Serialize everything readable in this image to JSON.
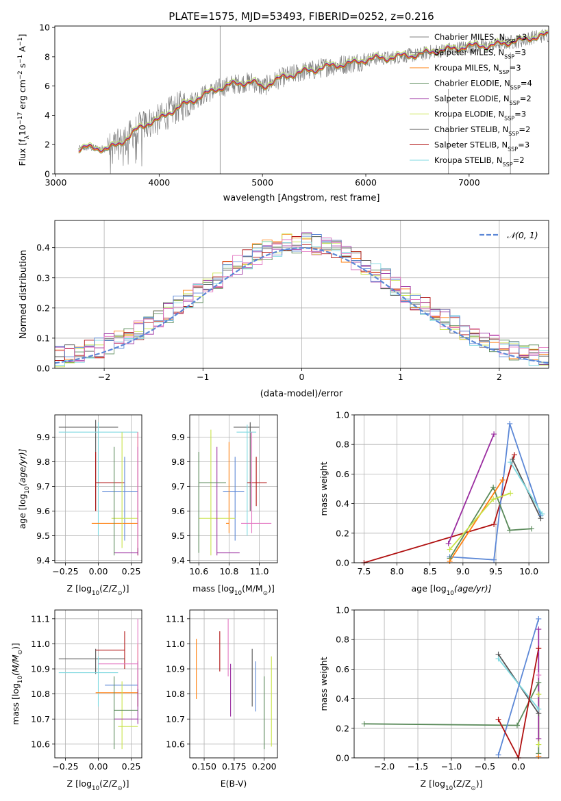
{
  "colors": {
    "chabrier_miles": "#808080",
    "salpeter_miles": "#808080",
    "kroupa_miles": "#ff7f0e",
    "chabrier_elodie": "#5a8a5a",
    "salpeter_elodie": "#9a2ca0",
    "kroupa_elodie": "#c8e34a",
    "chabrier_stelib": "#555555",
    "salpeter_stelib": "#b01010",
    "kroupa_stelib": "#7fd9e0",
    "blue": "#5b87d6",
    "pink": "#e377c2",
    "green": "#5a8a5a"
  },
  "chart_data": [
    {
      "id": "spectrum",
      "type": "line",
      "title": "PLATE=1575, MJD=53493, FIBERID=0252, z=0.216",
      "xlabel": "wavelength [Angstrom, rest frame]",
      "ylabel": "Flux [f",
      "ylabel_sub": "λ",
      "ylabel_rest": "10",
      "ylabel_exp": "−17",
      "ylabel_units": " erg cm",
      "ylabel_units_exp": "−2",
      "ylabel_s": " s",
      "ylabel_s_exp": "−1",
      "ylabel_A": " A",
      "ylabel_A_exp": "−1",
      "ylabel_close": "]",
      "xlim": [
        2990,
        7770
      ],
      "ylim": [
        0,
        10.1
      ],
      "xticks": [
        "3000",
        "4000",
        "5000",
        "6000",
        "7000"
      ],
      "xtick_values": [
        3000,
        4000,
        5000,
        6000,
        7000
      ],
      "yticks": [
        "0",
        "2",
        "4",
        "6",
        "8",
        "10"
      ],
      "ytick_values": [
        0,
        2,
        4,
        6,
        8,
        10
      ],
      "continuum": {
        "x": [
          3220,
          3300,
          3400,
          3500,
          3600,
          3700,
          3800,
          3900,
          4000,
          4100,
          4200,
          4300,
          4400,
          4500,
          4600,
          4700,
          4800,
          4900,
          5000,
          5100,
          5200,
          5300,
          5400,
          5500,
          5600,
          5700,
          5800,
          5900,
          6000,
          6100,
          6200,
          6300,
          6400,
          6500,
          6600,
          6700,
          6800,
          6900,
          7000,
          7100,
          7200,
          7300,
          7400,
          7500,
          7600,
          7770
        ],
        "y": [
          1.7,
          1.8,
          1.75,
          1.7,
          2.0,
          2.5,
          3.1,
          3.5,
          3.7,
          4.2,
          4.6,
          4.9,
          5.3,
          5.6,
          5.9,
          6.1,
          6.2,
          6.3,
          5.9,
          6.3,
          6.6,
          6.8,
          7.0,
          7.1,
          7.3,
          7.4,
          7.5,
          7.6,
          7.8,
          7.9,
          7.9,
          8.0,
          8.1,
          8.1,
          8.3,
          8.4,
          8.5,
          8.6,
          8.7,
          8.8,
          8.7,
          8.9,
          9.0,
          9.1,
          9.3,
          9.5
        ]
      },
      "legend": [
        {
          "label": "Chabrier MILES, N",
          "sub": "SSP",
          "val": "=3",
          "color": "#808080"
        },
        {
          "label": "Salpeter MILES, N",
          "sub": "SSP",
          "val": "=3",
          "color": "#808080"
        },
        {
          "label": "Kroupa MILES, N",
          "sub": "SSP",
          "val": "=3",
          "color": "#ff7f0e"
        },
        {
          "label": "Chabrier ELODIE, N",
          "sub": "SSP",
          "val": "=4",
          "color": "#5a8a5a"
        },
        {
          "label": "Salpeter ELODIE, N",
          "sub": "SSP",
          "val": "=2",
          "color": "#9a2ca0"
        },
        {
          "label": "Kroupa ELODIE, N",
          "sub": "SSP",
          "val": "=3",
          "color": "#c8e34a"
        },
        {
          "label": "Chabrier STELIB, N",
          "sub": "SSP",
          "val": "=2",
          "color": "#555555"
        },
        {
          "label": "Salpeter STELIB, N",
          "sub": "SSP",
          "val": "=3",
          "color": "#b01010"
        },
        {
          "label": "Kroupa STELIB, N",
          "sub": "SSP",
          "val": "=2",
          "color": "#7fd9e0"
        }
      ]
    },
    {
      "id": "residuals",
      "type": "line",
      "xlabel": "(data-model)/error",
      "ylabel": "Normed distribution",
      "xlim": [
        -2.5,
        2.5
      ],
      "ylim": [
        0,
        0.49
      ],
      "xticks": [
        "−2",
        "−1",
        "0",
        "1",
        "2"
      ],
      "xtick_values": [
        -2,
        -1,
        0,
        1,
        2
      ],
      "yticks": [
        "0.0",
        "0.1",
        "0.2",
        "0.3",
        "0.4"
      ],
      "ytick_values": [
        0,
        0.1,
        0.2,
        0.3,
        0.4
      ],
      "legend_label": "𝒩(0, 1)",
      "gaussian_color": "#5b87d6"
    },
    {
      "id": "age-vs-Z",
      "type": "scatter",
      "xlabel": "Z [log",
      "xlabel_sub": "10",
      "xlabel_rest": "(Z/Z",
      "xlabel_sun": "⊙",
      "xlabel_end": ")]",
      "ylabel": "age  [log",
      "ylabel_sub": "10",
      "ylabel_rest": "(age/yr)]",
      "xlim": [
        -0.33,
        0.33
      ],
      "ylim": [
        9.39,
        9.99
      ],
      "xticks": [
        "−0.25",
        "0.00",
        "0.25"
      ],
      "xtick_values": [
        -0.25,
        0,
        0.25
      ],
      "yticks": [
        "9.4",
        "9.5",
        "9.6",
        "9.7",
        "9.8",
        "9.9"
      ],
      "ytick_values": [
        9.4,
        9.5,
        9.6,
        9.7,
        9.8,
        9.9
      ]
    },
    {
      "id": "age-vs-mass",
      "type": "scatter",
      "xlabel": "mass [log",
      "xlabel_sub": "10",
      "xlabel_rest": "(M/M",
      "xlabel_sun": "⊙",
      "xlabel_end": ")]",
      "xlim": [
        10.54,
        11.12
      ],
      "ylim": [
        9.39,
        9.99
      ],
      "xticks": [
        "10.6",
        "10.8",
        "11.0"
      ],
      "xtick_values": [
        10.6,
        10.8,
        11.0
      ],
      "yticks": [
        "9.4",
        "9.5",
        "9.6",
        "9.7",
        "9.8",
        "9.9"
      ],
      "ytick_values": [
        9.4,
        9.5,
        9.6,
        9.7,
        9.8,
        9.9
      ]
    },
    {
      "id": "weight-vs-age",
      "type": "line",
      "xlabel": "age  [log",
      "xlabel_sub": "10",
      "xlabel_rest": "(age/yr)]",
      "ylabel": "mass weight",
      "xlim": [
        7.35,
        10.3
      ],
      "ylim": [
        0,
        1
      ],
      "xticks": [
        "7.5",
        "8.0",
        "8.5",
        "9.0",
        "9.5",
        "10.0"
      ],
      "xtick_values": [
        7.5,
        8.0,
        8.5,
        9.0,
        9.5,
        10.0
      ],
      "yticks": [
        "0.0",
        "0.2",
        "0.4",
        "0.6",
        "0.8",
        "1.0"
      ],
      "ytick_values": [
        0,
        0.2,
        0.4,
        0.6,
        0.8,
        1.0
      ],
      "series": [
        {
          "color": "#b01010",
          "x": [
            7.5,
            9.47,
            9.78
          ],
          "y": [
            0.0,
            0.26,
            0.73
          ]
        },
        {
          "color": "#9a2ca0",
          "x": [
            8.78,
            9.47
          ],
          "y": [
            0.13,
            0.87
          ]
        },
        {
          "color": "#5b87d6",
          "x": [
            8.8,
            9.47,
            9.71,
            10.18
          ],
          "y": [
            0.04,
            0.02,
            0.94,
            0.32
          ]
        },
        {
          "color": "#5a8a5a",
          "x": [
            8.8,
            9.46,
            9.71,
            10.04
          ],
          "y": [
            0.03,
            0.51,
            0.22,
            0.23
          ]
        },
        {
          "color": "#ff7f0e",
          "x": [
            8.8,
            9.6
          ],
          "y": [
            0.01,
            0.56
          ]
        },
        {
          "color": "#c8e34a",
          "x": [
            8.8,
            9.46,
            9.72
          ],
          "y": [
            0.09,
            0.43,
            0.47
          ]
        },
        {
          "color": "#555555",
          "x": [
            9.75,
            10.18
          ],
          "y": [
            0.7,
            0.3
          ]
        },
        {
          "color": "#7fd9e0",
          "x": [
            9.72,
            10.2
          ],
          "y": [
            0.68,
            0.33
          ]
        }
      ]
    },
    {
      "id": "mass-vs-Z",
      "type": "scatter",
      "xlabel": "Z [log",
      "xlabel_sub": "10",
      "xlabel_rest": "(Z/Z",
      "xlabel_sun": "⊙",
      "xlabel_end": ")]",
      "ylabel": "mass [log",
      "ylabel_sub": "10",
      "ylabel_rest": "(M/M",
      "ylabel_sun": "⊙",
      "ylabel_end": ")]",
      "xlim": [
        -0.33,
        0.33
      ],
      "ylim": [
        10.545,
        11.135
      ],
      "xticks": [
        "−0.25",
        "0.00",
        "0.25"
      ],
      "xtick_values": [
        -0.25,
        0,
        0.25
      ],
      "yticks": [
        "10.6",
        "10.7",
        "10.8",
        "10.9",
        "11.0",
        "11.1"
      ],
      "ytick_values": [
        10.6,
        10.7,
        10.8,
        10.9,
        11.0,
        11.1
      ]
    },
    {
      "id": "mass-vs-ebv",
      "type": "scatter",
      "xlabel": "E(B-V)",
      "xlim": [
        0.138,
        0.211
      ],
      "ylim": [
        10.545,
        11.135
      ],
      "xticks": [
        "0.150",
        "0.175",
        "0.200"
      ],
      "xtick_values": [
        0.15,
        0.175,
        0.2
      ],
      "yticks": [
        "10.6",
        "10.7",
        "10.8",
        "10.9",
        "11.0",
        "11.1"
      ],
      "ytick_values": [
        10.6,
        10.7,
        10.8,
        10.9,
        11.0,
        11.1
      ]
    },
    {
      "id": "weight-vs-Z",
      "type": "line",
      "xlabel": "Z [log",
      "xlabel_sub": "10",
      "xlabel_rest": "(Z/Z",
      "xlabel_sun": "⊙",
      "xlabel_end": ")]",
      "ylabel": "mass weight",
      "xlim": [
        -2.45,
        0.45
      ],
      "ylim": [
        0,
        1
      ],
      "xticks": [
        "−2.0",
        "−1.5",
        "−1.0",
        "−0.5",
        "0.0"
      ],
      "xtick_values": [
        -2.0,
        -1.5,
        -1.0,
        -0.5,
        0.0
      ],
      "yticks": [
        "0.0",
        "0.2",
        "0.4",
        "0.6",
        "0.8",
        "1.0"
      ],
      "ytick_values": [
        0,
        0.2,
        0.4,
        0.6,
        0.8,
        1.0
      ],
      "series": [
        {
          "color": "#5a8a5a",
          "x": [
            -2.3,
            -0.02,
            0.3,
            0.3
          ],
          "y": [
            0.23,
            0.22,
            0.51,
            0.03
          ]
        },
        {
          "color": "#555555",
          "x": [
            -0.3,
            0.3
          ],
          "y": [
            0.7,
            0.3
          ]
        },
        {
          "color": "#7fd9e0",
          "x": [
            -0.3,
            0.3
          ],
          "y": [
            0.67,
            0.33
          ]
        },
        {
          "color": "#5b87d6",
          "x": [
            -0.3,
            0.3
          ],
          "y": [
            0.02,
            0.94
          ]
        },
        {
          "color": "#b01010",
          "x": [
            -0.3,
            0.0,
            0.3
          ],
          "y": [
            0.26,
            0.0,
            0.74
          ]
        },
        {
          "color": "#c8e34a",
          "x": [
            0.3,
            0.3
          ],
          "y": [
            0.43,
            0.09
          ]
        },
        {
          "color": "#9a2ca0",
          "x": [
            0.3,
            0.3
          ],
          "y": [
            0.87,
            0.13
          ]
        },
        {
          "color": "#e377c2",
          "x": [
            0.3
          ],
          "y": [
            0.56
          ]
        },
        {
          "color": "#ff7f0e",
          "x": [
            0.3
          ],
          "y": [
            0.01
          ]
        }
      ]
    }
  ]
}
